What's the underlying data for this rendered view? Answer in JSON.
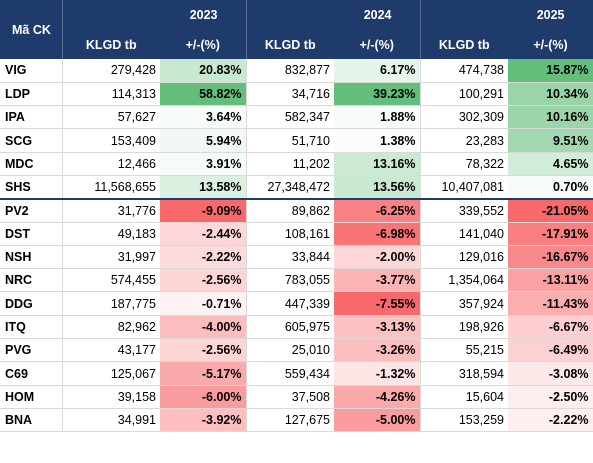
{
  "header": {
    "ticker_label": "Mã CK",
    "volume_label": "KLGD tb",
    "change_label": "+/-(%)",
    "years": [
      "2023",
      "2024",
      "2025"
    ]
  },
  "rows": [
    {
      "code": "VIG",
      "v2023": "279,428",
      "c2023": "20.83%",
      "v2024": "832,877",
      "c2024": "6.17%",
      "v2025": "474,738",
      "c2025": "15.87%"
    },
    {
      "code": "LDP",
      "v2023": "114,313",
      "c2023": "58.82%",
      "v2024": "34,716",
      "c2024": "39.23%",
      "v2025": "100,291",
      "c2025": "10.34%"
    },
    {
      "code": "IPA",
      "v2023": "57,627",
      "c2023": "3.64%",
      "v2024": "582,347",
      "c2024": "1.88%",
      "v2025": "302,309",
      "c2025": "10.16%"
    },
    {
      "code": "SCG",
      "v2023": "153,409",
      "c2023": "5.94%",
      "v2024": "51,710",
      "c2024": "1.38%",
      "v2025": "23,283",
      "c2025": "9.51%"
    },
    {
      "code": "MDC",
      "v2023": "12,466",
      "c2023": "3.91%",
      "v2024": "11,202",
      "c2024": "13.16%",
      "v2025": "78,322",
      "c2025": "4.65%"
    },
    {
      "code": "SHS",
      "v2023": "11,568,655",
      "c2023": "13.58%",
      "v2024": "27,348,472",
      "c2024": "13.56%",
      "v2025": "10,407,081",
      "c2025": "0.70%"
    },
    {
      "code": "PV2",
      "v2023": "31,776",
      "c2023": "-9.09%",
      "v2024": "89,862",
      "c2024": "-6.25%",
      "v2025": "339,552",
      "c2025": "-21.05%"
    },
    {
      "code": "DST",
      "v2023": "49,183",
      "c2023": "-2.44%",
      "v2024": "108,161",
      "c2024": "-6.98%",
      "v2025": "141,040",
      "c2025": "-17.91%"
    },
    {
      "code": "NSH",
      "v2023": "31,997",
      "c2023": "-2.22%",
      "v2024": "33,844",
      "c2024": "-2.00%",
      "v2025": "129,016",
      "c2025": "-16.67%"
    },
    {
      "code": "NRC",
      "v2023": "574,455",
      "c2023": "-2.56%",
      "v2024": "783,055",
      "c2024": "-3.77%",
      "v2025": "1,354,064",
      "c2025": "-13.11%"
    },
    {
      "code": "DDG",
      "v2023": "187,775",
      "c2023": "-0.71%",
      "v2024": "447,339",
      "c2024": "-7.55%",
      "v2025": "357,924",
      "c2025": "-11.43%"
    },
    {
      "code": "ITQ",
      "v2023": "82,962",
      "c2023": "-4.00%",
      "v2024": "605,975",
      "c2024": "-3.13%",
      "v2025": "198,926",
      "c2025": "-6.67%"
    },
    {
      "code": "PVG",
      "v2023": "43,177",
      "c2023": "-2.56%",
      "v2024": "25,010",
      "c2024": "-3.26%",
      "v2025": "55,215",
      "c2025": "-6.49%"
    },
    {
      "code": "C69",
      "v2023": "125,067",
      "c2023": "-5.17%",
      "v2024": "559,434",
      "c2024": "-1.32%",
      "v2025": "318,594",
      "c2025": "-3.08%"
    },
    {
      "code": "HOM",
      "v2023": "39,158",
      "c2023": "-6.00%",
      "v2024": "37,508",
      "c2024": "-4.26%",
      "v2025": "15,604",
      "c2025": "-2.50%"
    },
    {
      "code": "BNA",
      "v2023": "34,991",
      "c2023": "-3.92%",
      "v2024": "127,675",
      "c2024": "-5.00%",
      "v2025": "153,259",
      "c2025": "-2.22%"
    }
  ],
  "colors": {
    "header_bg": "#1f3b6b",
    "positive": "#63be7b",
    "negative": "#f8696b",
    "neutral": "#ffffff"
  }
}
